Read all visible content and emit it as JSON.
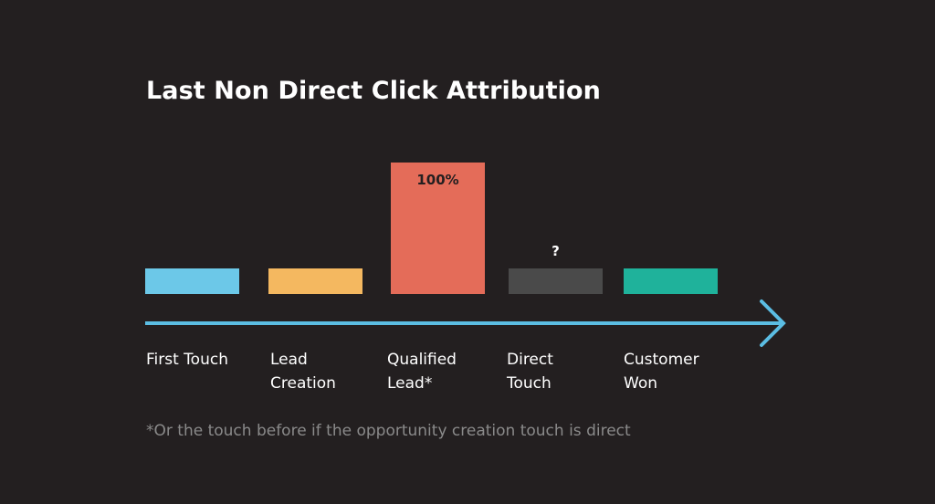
{
  "chart_data": {
    "type": "bar",
    "title": "Last Non Direct Click Attribution",
    "categories": [
      "First Touch",
      "Lead\nCreation",
      "Qualified\nLead*",
      "Direct\nTouch",
      "Customer\nWon"
    ],
    "values": [
      0,
      0,
      100,
      null,
      0
    ],
    "value_labels": [
      "",
      "",
      "100%",
      "?",
      ""
    ],
    "colors": [
      "#6cc8e8",
      "#f4b860",
      "#e46c59",
      "#4a4a4a",
      "#1fb29b"
    ],
    "label_colors": [
      "#231f20",
      "#231f20",
      "#231f20",
      "#ffffff",
      "#231f20"
    ],
    "axis_color": "#5bbde3",
    "ylim": [
      0,
      100
    ],
    "grid": false,
    "footnote": "*Or the touch before if the opportunity creation touch is direct"
  }
}
